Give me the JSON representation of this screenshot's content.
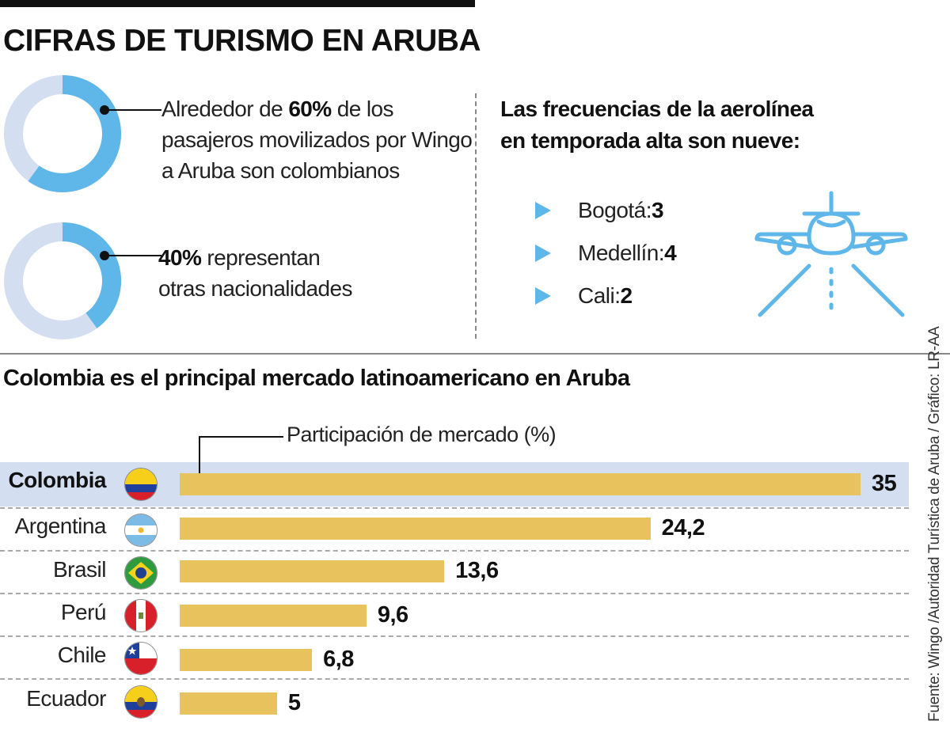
{
  "title": "CIFRAS DE TURISMO EN ARUBA",
  "colors": {
    "accent_blue": "#5fb6e8",
    "light_blue": "#d3def0",
    "bar_gold": "#e8c25d"
  },
  "stats": [
    {
      "percent": 60,
      "pre": "Alrededor de ",
      "bold": "60%",
      "line1_rest": " de los",
      "line2": "pasajeros movilizados por Wingo",
      "line3": "a Aruba son colombianos"
    },
    {
      "percent": 40,
      "bold": "40%",
      "line1_rest": " representan",
      "line2": "otras nacionalidades"
    }
  ],
  "frequencies": {
    "title_line1": "Las frecuencias de la aerolínea",
    "title_line2": "en temporada alta son nueve:",
    "items": [
      {
        "label": "Bogotá: ",
        "value": "3"
      },
      {
        "label": "Medellín: ",
        "value": "4"
      },
      {
        "label": "Cali: ",
        "value": "2"
      }
    ]
  },
  "source": "Fuente: Wingo /Autoridad Turística de Aruba / Gráfico: LR-AA",
  "chart_data": {
    "type": "bar",
    "orientation": "horizontal",
    "title": "Colombia es el principal mercado latinoamericano en Aruba",
    "legend": "Participación de mercado (%)",
    "categories": [
      "Colombia",
      "Argentina",
      "Brasil",
      "Perú",
      "Chile",
      "Ecuador"
    ],
    "values": [
      35,
      24.2,
      13.6,
      9.6,
      6.8,
      5
    ],
    "value_labels": [
      "35",
      "24,2",
      "13,6",
      "9,6",
      "6,8",
      "5"
    ],
    "xlim": [
      0,
      35
    ],
    "highlight": "Colombia"
  }
}
